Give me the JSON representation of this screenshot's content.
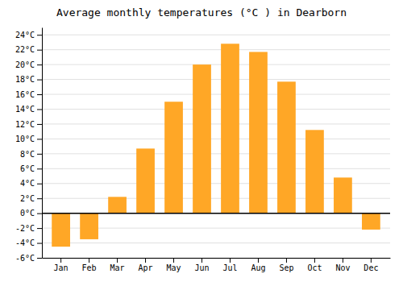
{
  "chart_data": {
    "type": "bar",
    "title": "Average monthly temperatures (°C ) in Dearborn",
    "categories": [
      "Jan",
      "Feb",
      "Mar",
      "Apr",
      "May",
      "Jun",
      "Jul",
      "Aug",
      "Sep",
      "Oct",
      "Nov",
      "Dec"
    ],
    "values": [
      -4.5,
      -3.5,
      2.2,
      8.7,
      15.0,
      20.0,
      22.8,
      21.7,
      17.7,
      11.2,
      4.8,
      -2.2
    ],
    "color": "#FFA726",
    "ylim": [
      -6,
      25
    ],
    "yticks": [
      {
        "value": -6,
        "label": "-6°C"
      },
      {
        "value": -4,
        "label": "-4°C"
      },
      {
        "value": -2,
        "label": "-2°C"
      },
      {
        "value": 0,
        "label": "0°C"
      },
      {
        "value": 2,
        "label": "2°C"
      },
      {
        "value": 4,
        "label": "4°C"
      },
      {
        "value": 6,
        "label": "6°C"
      },
      {
        "value": 8,
        "label": "8°C"
      },
      {
        "value": 10,
        "label": "10°C"
      },
      {
        "value": 12,
        "label": "12°C"
      },
      {
        "value": 14,
        "label": "14°C"
      },
      {
        "value": 16,
        "label": "16°C"
      },
      {
        "value": 18,
        "label": "18°C"
      },
      {
        "value": 20,
        "label": "20°C"
      },
      {
        "value": 22,
        "label": "22°C"
      },
      {
        "value": 24,
        "label": "24°C"
      }
    ],
    "grid": true
  }
}
